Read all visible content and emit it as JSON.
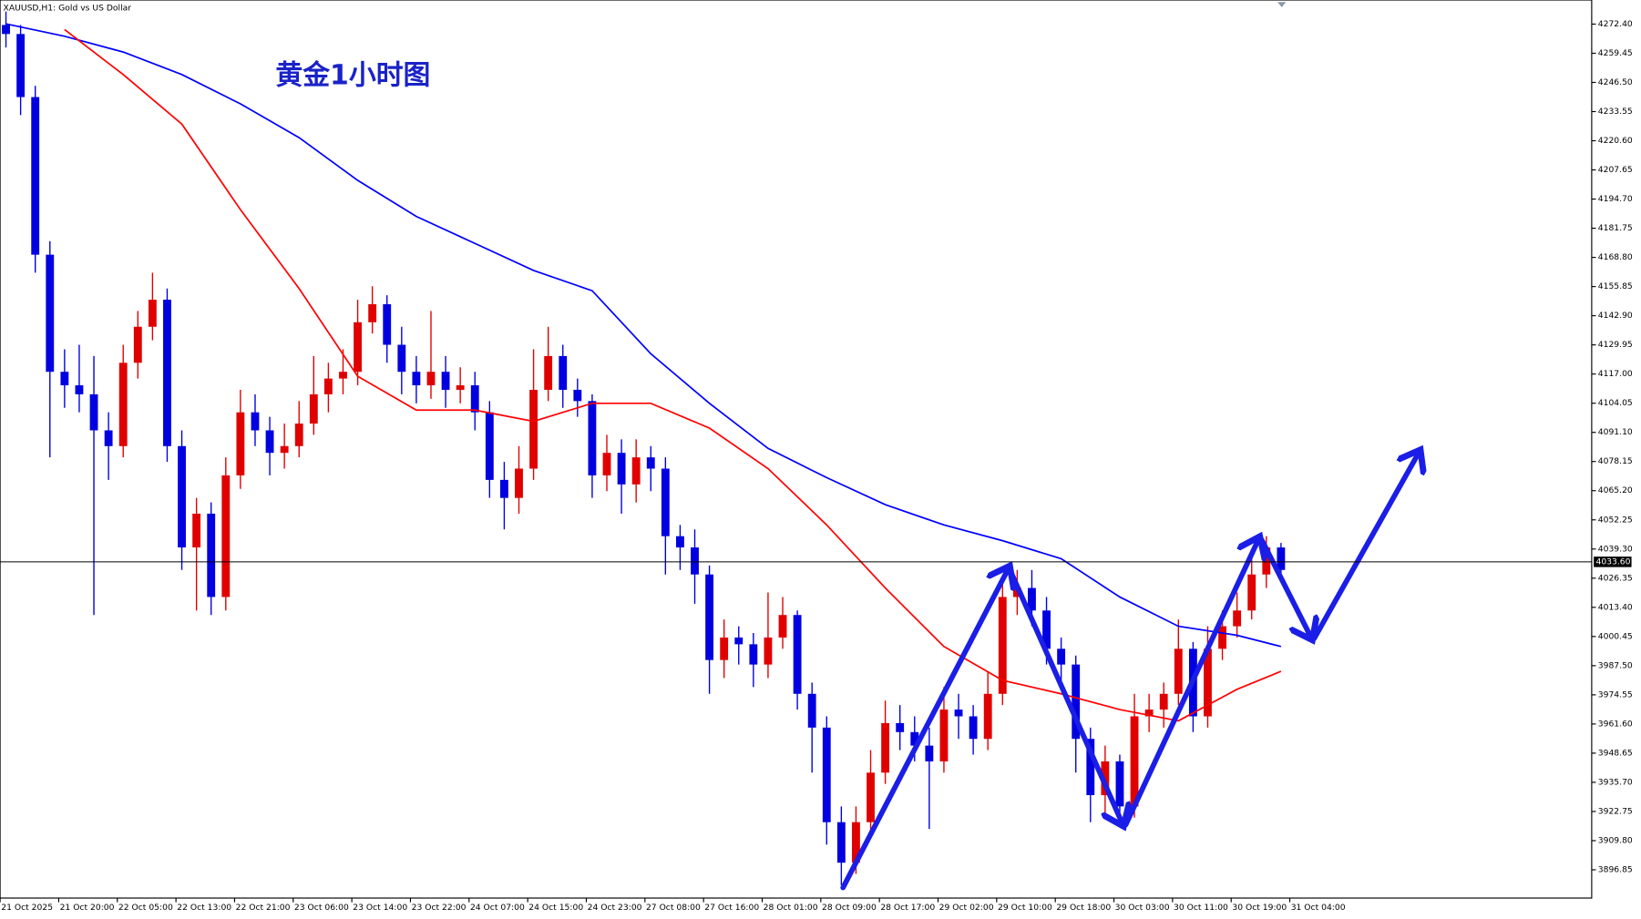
{
  "chart_data": {
    "type": "candlestick",
    "header": "XAUUSD,H1:  Gold vs US Dollar",
    "title": "黄金1小时图",
    "up_color": "#e00000",
    "down_color": "#0000e0",
    "open": [
      4272,
      4268,
      4240,
      4170,
      4118,
      4112,
      4108,
      4092,
      4085,
      4122,
      4138,
      4150,
      4085,
      4040,
      4055,
      4018,
      4072,
      4100,
      4092,
      4082,
      4085,
      4095,
      4108,
      4115,
      4118,
      4140,
      4148,
      4130,
      4118,
      4112,
      4118,
      4110,
      4112,
      4100,
      4070,
      4062,
      4075,
      4110,
      4125,
      4110,
      4105,
      4072,
      4082,
      4068,
      4080,
      4075,
      4045,
      4040,
      4028,
      3990,
      4000,
      3997,
      3988,
      4000,
      4010,
      3975,
      3960,
      3918,
      3900,
      3918,
      3940,
      3962,
      3958,
      3952,
      3945,
      3968,
      3965,
      3955,
      3975,
      4018,
      4022,
      4012,
      3995,
      3988,
      3955,
      3930,
      3945,
      3925,
      3965,
      3968,
      3975,
      3995,
      3965,
      3995,
      4005,
      4012,
      4028,
      4040
    ],
    "high": [
      4278,
      4272,
      4245,
      4176,
      4128,
      4130,
      4125,
      4100,
      4130,
      4145,
      4162,
      4155,
      4092,
      4062,
      4060,
      4080,
      4110,
      4108,
      4098,
      4095,
      4105,
      4125,
      4122,
      4128,
      4150,
      4156,
      4152,
      4138,
      4125,
      4145,
      4125,
      4120,
      4118,
      4105,
      4078,
      4085,
      4128,
      4138,
      4130,
      4115,
      4108,
      4090,
      4088,
      4088,
      4085,
      4080,
      4050,
      4048,
      4032,
      4008,
      4005,
      4002,
      4020,
      4018,
      4012,
      3980,
      3965,
      3925,
      3925,
      3950,
      3972,
      3970,
      3965,
      3960,
      3978,
      3975,
      3970,
      3985,
      4025,
      4030,
      4030,
      4018,
      4000,
      3992,
      3960,
      3952,
      3948,
      3975,
      3975,
      3980,
      4008,
      3998,
      4005,
      4012,
      4020,
      4035,
      4045,
      4042
    ],
    "low": [
      4262,
      4232,
      4162,
      4080,
      4102,
      4100,
      4010,
      4070,
      4080,
      4115,
      4132,
      4078,
      4030,
      4012,
      4010,
      4012,
      4066,
      4085,
      4072,
      4075,
      4080,
      4090,
      4100,
      4108,
      4112,
      4135,
      4122,
      4108,
      4104,
      4106,
      4102,
      4104,
      4092,
      4062,
      4048,
      4055,
      4070,
      4105,
      4102,
      4098,
      4062,
      4065,
      4055,
      4060,
      4065,
      4028,
      4030,
      4015,
      3975,
      3982,
      3988,
      3978,
      3982,
      3995,
      3968,
      3940,
      3908,
      3890,
      3895,
      3912,
      3935,
      3950,
      3945,
      3915,
      3940,
      3955,
      3948,
      3950,
      3970,
      4010,
      4005,
      3988,
      3980,
      3940,
      3918,
      3922,
      3918,
      3920,
      3958,
      3960,
      3970,
      3958,
      3960,
      3990,
      4000,
      4008,
      4022,
      4025
    ],
    "close": [
      4268,
      4240,
      4170,
      4118,
      4112,
      4108,
      4092,
      4085,
      4122,
      4138,
      4150,
      4085,
      4040,
      4055,
      4018,
      4072,
      4100,
      4092,
      4082,
      4085,
      4095,
      4108,
      4115,
      4118,
      4140,
      4148,
      4130,
      4118,
      4112,
      4118,
      4110,
      4112,
      4100,
      4070,
      4062,
      4075,
      4110,
      4125,
      4110,
      4105,
      4072,
      4082,
      4068,
      4080,
      4075,
      4045,
      4040,
      4028,
      3990,
      4000,
      3997,
      3988,
      4000,
      4010,
      3975,
      3960,
      3918,
      3900,
      3918,
      3940,
      3962,
      3958,
      3952,
      3945,
      3968,
      3965,
      3955,
      3975,
      4018,
      4022,
      4012,
      3995,
      3988,
      3955,
      3930,
      3945,
      3925,
      3965,
      3968,
      3975,
      3995,
      3965,
      3995,
      4005,
      4012,
      4028,
      4040,
      4030
    ],
    "lines": [
      {
        "color": "#0000ff",
        "x": [
          0,
          4,
          8,
          12,
          16,
          20,
          24,
          28,
          32,
          36,
          40,
          44,
          48,
          52,
          56,
          60,
          64,
          68,
          72,
          76,
          80,
          84,
          87
        ],
        "values": [
          4272.5,
          4267,
          4260,
          4250,
          4237,
          4222,
          4203,
          4187,
          4175,
          4163,
          4154,
          4126,
          4104,
          4084,
          4071,
          4059,
          4050,
          4043,
          4035,
          4018,
          4005,
          4001,
          3996
        ]
      },
      {
        "color": "#ff0000",
        "x": [
          4,
          8,
          12,
          16,
          20,
          24,
          28,
          32,
          36,
          40,
          44,
          48,
          52,
          56,
          60,
          64,
          68,
          72,
          76,
          80,
          84,
          87
        ],
        "values": [
          4270,
          4250,
          4228,
          4190,
          4155,
          4116,
          4101,
          4101,
          4096,
          4104,
          4104,
          4093,
          4075,
          4050,
          4022,
          3996,
          3981,
          3975,
          3968,
          3963,
          3977,
          3985
        ]
      }
    ],
    "price_line": {
      "value": 4033.6,
      "label": "4033.60"
    },
    "xlim": [
      -0.4,
      108.2
    ],
    "xticks": [
      {
        "value": -0.4,
        "label": "21 Oct 2025"
      },
      {
        "value": 3.6,
        "label": "21 Oct 20:00"
      },
      {
        "value": 7.6,
        "label": "22 Oct 05:00"
      },
      {
        "value": 11.6,
        "label": "22 Oct 13:00"
      },
      {
        "value": 15.6,
        "label": "22 Oct 21:00"
      },
      {
        "value": 19.6,
        "label": "23 Oct 06:00"
      },
      {
        "value": 23.6,
        "label": "23 Oct 14:00"
      },
      {
        "value": 27.6,
        "label": "23 Oct 22:00"
      },
      {
        "value": 31.6,
        "label": "24 Oct 07:00"
      },
      {
        "value": 35.6,
        "label": "24 Oct 15:00"
      },
      {
        "value": 39.6,
        "label": "24 Oct 23:00"
      },
      {
        "value": 43.6,
        "label": "27 Oct 08:00"
      },
      {
        "value": 47.6,
        "label": "27 Oct 16:00"
      },
      {
        "value": 51.6,
        "label": "28 Oct 01:00"
      },
      {
        "value": 55.6,
        "label": "28 Oct 09:00"
      },
      {
        "value": 59.6,
        "label": "28 Oct 17:00"
      },
      {
        "value": 63.6,
        "label": "29 Oct 02:00"
      },
      {
        "value": 67.6,
        "label": "29 Oct 10:00"
      },
      {
        "value": 71.6,
        "label": "29 Oct 18:00"
      },
      {
        "value": 75.6,
        "label": "30 Oct 03:00"
      },
      {
        "value": 79.6,
        "label": "30 Oct 11:00"
      },
      {
        "value": 83.6,
        "label": "30 Oct 19:00"
      },
      {
        "value": 87.6,
        "label": "31 Oct 04:00"
      }
    ],
    "ylim": [
      3884.3,
      4283.1
    ],
    "yticks": [
      {
        "value": 4272.4,
        "label": "4272.40"
      },
      {
        "value": 4259.45,
        "label": "4259.45"
      },
      {
        "value": 4246.5,
        "label": "4246.50"
      },
      {
        "value": 4233.55,
        "label": "4233.55"
      },
      {
        "value": 4220.6,
        "label": "4220.60"
      },
      {
        "value": 4207.65,
        "label": "4207.65"
      },
      {
        "value": 4194.7,
        "label": "4194.70"
      },
      {
        "value": 4181.75,
        "label": "4181.75"
      },
      {
        "value": 4168.8,
        "label": "4168.80"
      },
      {
        "value": 4155.85,
        "label": "4155.85"
      },
      {
        "value": 4142.9,
        "label": "4142.90"
      },
      {
        "value": 4129.95,
        "label": "4129.95"
      },
      {
        "value": 4117,
        "label": "4117.00"
      },
      {
        "value": 4104.05,
        "label": "4104.05"
      },
      {
        "value": 4091.1,
        "label": "4091.10"
      },
      {
        "value": 4078.15,
        "label": "4078.15"
      },
      {
        "value": 4065.2,
        "label": "4065.20"
      },
      {
        "value": 4052.25,
        "label": "4052.25"
      },
      {
        "value": 4039.3,
        "label": "4039.30"
      },
      {
        "value": 4026.35,
        "label": "4026.35"
      },
      {
        "value": 4013.4,
        "label": "4013.40"
      },
      {
        "value": 4000.45,
        "label": "4000.45"
      },
      {
        "value": 3987.5,
        "label": "3987.50"
      },
      {
        "value": 3974.55,
        "label": "3974.55"
      },
      {
        "value": 3961.6,
        "label": "3961.60"
      },
      {
        "value": 3948.65,
        "label": "3948.65"
      },
      {
        "value": 3935.7,
        "label": "3935.70"
      },
      {
        "value": 3922.75,
        "label": "3922.75"
      },
      {
        "value": 3909.8,
        "label": "3909.80"
      },
      {
        "value": 3896.85,
        "label": "3896.85"
      }
    ],
    "grid": false
  }
}
